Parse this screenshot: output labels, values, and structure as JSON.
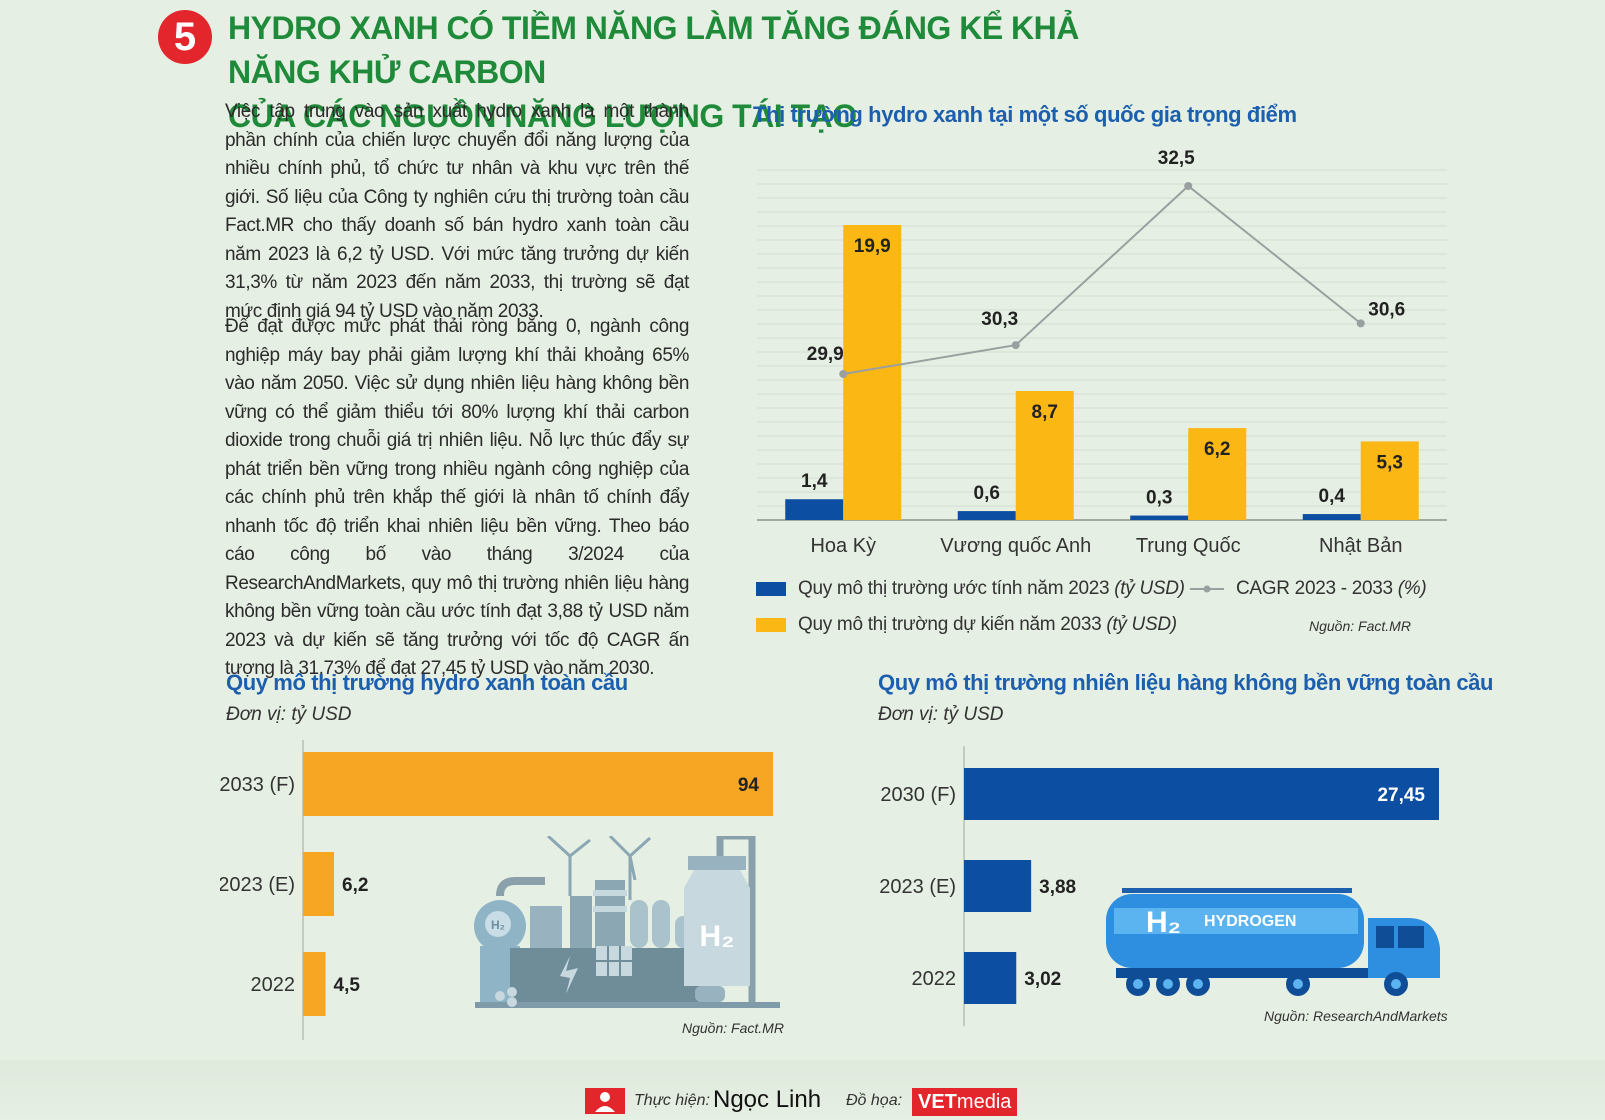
{
  "header": {
    "number": "5",
    "title_line1": "Hydro xanh có tiềm năng làm tăng đáng kể khả năng khử carbon",
    "title_line2": "của các nguồn năng lượng tái tạo"
  },
  "body": {
    "paragraph1": "Việc tập trung vào sản xuất hydro xanh là một thành phần chính của chiến lược chuyển đổi năng lượng của nhiều chính phủ, tổ chức tư nhân và khu vực trên thế giới. Số liệu của Công ty nghiên cứu thị trường toàn cầu Fact.MR cho thấy doanh số bán hydro xanh toàn cầu năm 2023 là 6,2 tỷ USD. Với mức tăng trưởng dự kiến 31,3% từ năm 2023 đến năm 2033, thị trường sẽ đạt mức định giá 94 tỷ USD vào năm 2033.",
    "paragraph2": "Để đạt được mức phát thải ròng bằng 0, ngành công nghiệp máy bay phải giảm lượng khí thải khoảng 65% vào năm 2050. Việc sử dụng nhiên liệu hàng không bền vững có thể giảm thiểu tới 80% lượng khí thải carbon dioxide trong chuỗi giá trị nhiên liệu. Nỗ lực thúc đẩy sự phát triển bền vững trong nhiều ngành công nghiệp của các chính phủ trên khắp thế giới là nhân tố chính đẩy nhanh tốc độ triển khai nhiên liệu bền vững. Theo báo cáo công bố vào tháng 3/2024 của ResearchAndMarkets, quy mô thị trường nhiên liệu hàng không bền vững toàn cầu ước tính đạt 3,88 tỷ USD năm 2023 và dự kiến sẽ tăng trưởng với tốc độ CAGR ấn tượng là 31,73% để đạt 27,45 tỷ USD vào năm 2030."
  },
  "colors": {
    "navy": "#0b4ea2",
    "orange": "#f6a623",
    "yellow": "#fbb713",
    "line": "#9aa0a0",
    "green": "#1f8b3a",
    "red": "#e3262c"
  },
  "chart_data": [
    {
      "type": "bar",
      "title": "Thị trường hydro xanh tại một số quốc gia trọng điểm",
      "categories": [
        "Hoa Kỳ",
        "Vương quốc Anh",
        "Trung Quốc",
        "Nhật Bản"
      ],
      "series": [
        {
          "name": "Quy mô thị trường ước tính năm 2023",
          "unit": "(tỷ USD)",
          "values": [
            1.4,
            0.6,
            0.3,
            0.4
          ],
          "labels": [
            "1,4",
            "0,6",
            "0,3",
            "0,4"
          ],
          "color": "#0b4ea2"
        },
        {
          "name": "Quy mô thị trường dự kiến năm 2033",
          "unit": "(tỷ USD)",
          "values": [
            19.9,
            8.7,
            6.2,
            5.3
          ],
          "labels": [
            "19,9",
            "8,7",
            "6,2",
            "5,3"
          ],
          "color": "#fbb713"
        },
        {
          "name": "CAGR 2023 - 2033",
          "unit": "(%)",
          "type": "line",
          "values": [
            29.9,
            30.3,
            32.5,
            30.6
          ],
          "labels": [
            "29,9",
            "30,3",
            "32,5",
            "30,6"
          ],
          "color": "#9aa0a0"
        }
      ],
      "source": "Nguồn: Fact.MR"
    },
    {
      "type": "bar",
      "orientation": "horizontal",
      "title": "Quy mô thị trường hydro xanh toàn cầu",
      "unit": "Đơn vị: tỷ USD",
      "categories": [
        "2033 (F)",
        "2023 (E)",
        "2022"
      ],
      "values": [
        94,
        6.2,
        4.5
      ],
      "labels": [
        "94",
        "6,2",
        "4,5"
      ],
      "source": "Nguồn: Fact.MR"
    },
    {
      "type": "bar",
      "orientation": "horizontal",
      "title": "Quy mô thị trường nhiên liệu hàng không bền vững toàn cầu",
      "unit": "Đơn vị: tỷ USD",
      "categories": [
        "2030 (F)",
        "2023 (E)",
        "2022"
      ],
      "values": [
        27.45,
        3.88,
        3.02
      ],
      "labels": [
        "27,45",
        "3,88",
        "3,02"
      ],
      "source": "Nguồn: ResearchAndMarkets"
    }
  ],
  "illustrations": {
    "factory_h2": "H₂",
    "truck_h2": "H₂",
    "truck_label": "HYDROGEN"
  },
  "footer": {
    "author_label": "Thực hiện:",
    "author": "Ngọc Linh",
    "graphic_label": "Đồ họa:",
    "graphic_brand_vet": "VET",
    "graphic_brand_media": "media"
  }
}
